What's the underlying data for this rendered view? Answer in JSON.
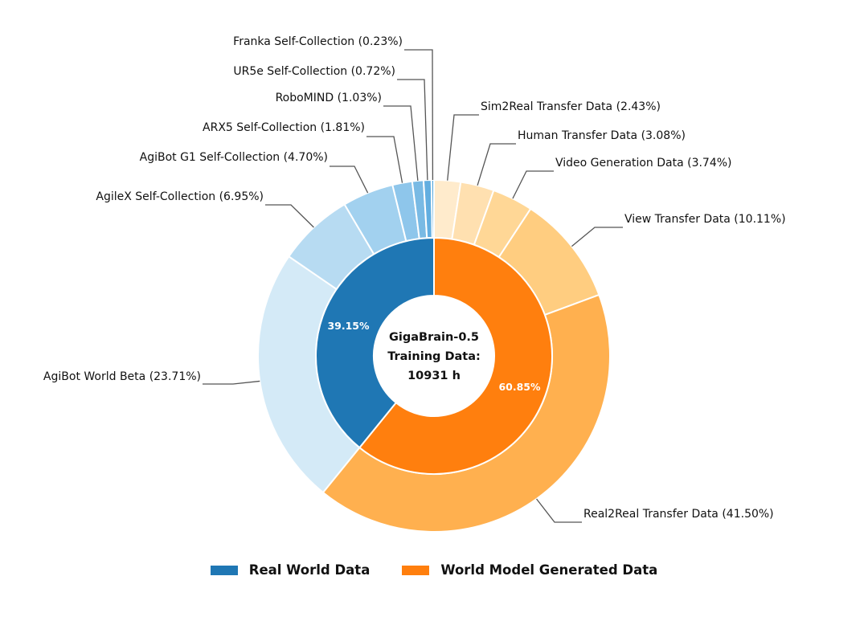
{
  "chart_data": {
    "type": "pie",
    "center_lines": [
      "GigaBrain-0.5",
      "Training Data:",
      "10931 h"
    ],
    "inner": [
      {
        "name": "Real World Data",
        "value": 39.15,
        "label": "39.15%",
        "color": "#1f77b4"
      },
      {
        "name": "World Model Generated Data",
        "value": 60.85,
        "label": "60.85%",
        "color": "#ff7f0e"
      }
    ],
    "outer": [
      {
        "label": "Sim2Real Transfer Data (2.43%)",
        "value": 2.43,
        "color": "#ffebcc"
      },
      {
        "label": "Human Transfer Data (3.08%)",
        "value": 3.08,
        "color": "#ffe0b0"
      },
      {
        "label": "Video Generation Data (3.74%)",
        "value": 3.74,
        "color": "#ffd796"
      },
      {
        "label": "View Transfer Data (10.11%)",
        "value": 10.11,
        "color": "#ffcd80"
      },
      {
        "label": "Real2Real Transfer Data (41.50%)",
        "value": 41.5,
        "color": "#ffb04f"
      },
      {
        "label": "AgiBot World Beta (23.71%)",
        "value": 23.71,
        "color": "#d4eaf7"
      },
      {
        "label": "AgileX Self-Collection (6.95%)",
        "value": 6.95,
        "color": "#b7dbf2"
      },
      {
        "label": "AgiBot G1 Self-Collection (4.70%)",
        "value": 4.7,
        "color": "#a2d1ef"
      },
      {
        "label": "ARX5 Self-Collection (1.81%)",
        "value": 1.81,
        "color": "#8ec6eb"
      },
      {
        "label": "RoboMIND (1.03%)",
        "value": 1.03,
        "color": "#79bae4"
      },
      {
        "label": "UR5e Self-Collection (0.72%)",
        "value": 0.72,
        "color": "#62aee0"
      },
      {
        "label": "Franka Self-Collection (0.23%)",
        "value": 0.23,
        "color": "#4ea3da"
      }
    ],
    "legend": [
      {
        "label": "Real World Data",
        "color": "#1f77b4"
      },
      {
        "label": "World Model Generated Data",
        "color": "#ff7f0e"
      }
    ]
  }
}
